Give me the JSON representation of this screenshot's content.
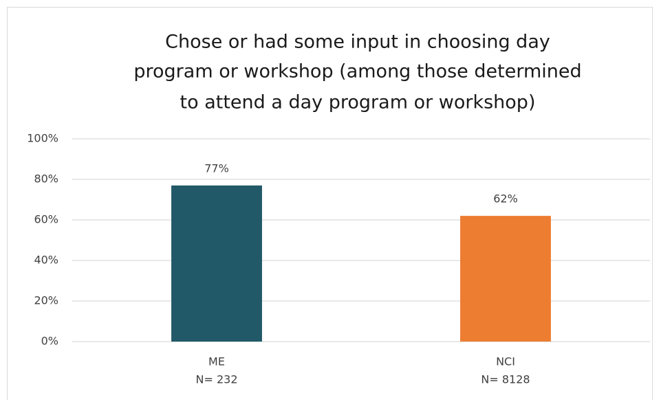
{
  "chart_data": {
    "type": "bar",
    "title": [
      "Chose or had some input in choosing day",
      "program or workshop (among those determined",
      "to attend a day program or workshop)"
    ],
    "categories": [
      "ME",
      "NCI"
    ],
    "sample_sizes": [
      "N= 232",
      "N= 8128"
    ],
    "values": [
      77,
      62
    ],
    "value_labels": [
      "77%",
      "62%"
    ],
    "colors": [
      "#215968",
      "#ed7d31"
    ],
    "ylim": [
      0,
      100
    ],
    "yticks": [
      {
        "value": 0,
        "label": "0%"
      },
      {
        "value": 20,
        "label": "20%"
      },
      {
        "value": 40,
        "label": "40%"
      },
      {
        "value": 60,
        "label": "60%"
      },
      {
        "value": 80,
        "label": "80%"
      },
      {
        "value": 100,
        "label": "100%"
      }
    ],
    "grid": true
  }
}
